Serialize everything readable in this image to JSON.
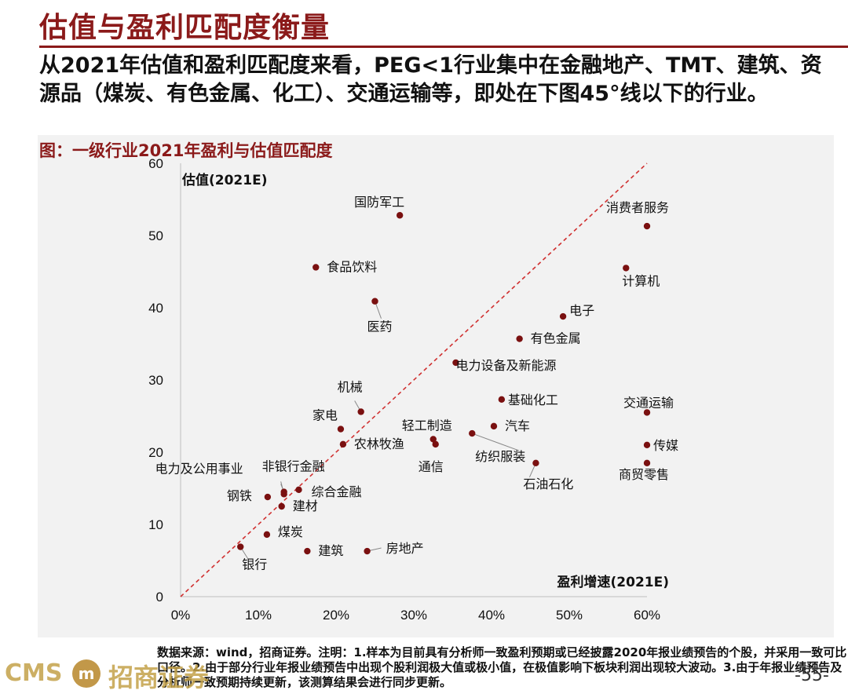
{
  "page": {
    "title": "估值与盈利匹配度衡量",
    "summary": "从2021年估值和盈利匹配度来看，PEG<1行业集中在金融地产、TMT、建筑、资源品（煤炭、有色金属、化工）、交通运输等，即处在下图45°线以下的行业。",
    "caption": "图：一级行业2021年盈利与估值匹配度",
    "footnote": "数据来源：wind，招商证券。注明：1.样本为目前具有分析师一致盈利预期或已经披露2020年报业绩预告的个股，并采用一致可比口径。2.由于部分行业年报业绩预告中出现个股利润极大值或极小值，在极值影响下板块利润出现较大波动。3.由于年报业绩预告及分析师一致预期持续更新，该测算结果会进行同步更新。",
    "logo_text": "CMS",
    "logo_mark": "m",
    "logo_cn": "招商证券",
    "page_number": "-55-"
  },
  "chart_data": {
    "type": "scatter",
    "title": "",
    "xlabel": "盈利增速(2021E)",
    "ylabel": "估值(2021E)",
    "xlim": [
      0,
      0.6
    ],
    "ylim": [
      0,
      60
    ],
    "x_ticks": [
      "0%",
      "10%",
      "20%",
      "30%",
      "40%",
      "50%",
      "60%"
    ],
    "y_ticks": [
      "0",
      "10",
      "20",
      "30",
      "40",
      "50",
      "60"
    ],
    "reference_line": "45° diagonal (dashed red)",
    "point_color": "#7a1010",
    "line_color": "#d03030",
    "points": [
      {
        "label": "国防军工",
        "x": 0.282,
        "y": 52.8
      },
      {
        "label": "消费者服务",
        "x": 0.6,
        "y": 51.3
      },
      {
        "label": "食品饮料",
        "x": 0.174,
        "y": 45.6
      },
      {
        "label": "计算机",
        "x": 0.573,
        "y": 45.5
      },
      {
        "label": "医药",
        "x": 0.25,
        "y": 40.9
      },
      {
        "label": "电子",
        "x": 0.492,
        "y": 38.8
      },
      {
        "label": "有色金属",
        "x": 0.436,
        "y": 35.7
      },
      {
        "label": "电力设备及新能源",
        "x": 0.354,
        "y": 32.4
      },
      {
        "label": "基础化工",
        "x": 0.413,
        "y": 27.3
      },
      {
        "label": "交通运输",
        "x": 0.6,
        "y": 25.5
      },
      {
        "label": "机械",
        "x": 0.232,
        "y": 25.6
      },
      {
        "label": "家电",
        "x": 0.206,
        "y": 23.2
      },
      {
        "label": "汽车",
        "x": 0.403,
        "y": 23.6
      },
      {
        "label": "轻工制造",
        "x": 0.325,
        "y": 21.8
      },
      {
        "label": "纺织服装",
        "x": 0.375,
        "y": 22.6
      },
      {
        "label": "农林牧渔",
        "x": 0.209,
        "y": 21.1
      },
      {
        "label": "通信",
        "x": 0.328,
        "y": 21.1
      },
      {
        "label": "传媒",
        "x": 0.6,
        "y": 21.0
      },
      {
        "label": "石油石化",
        "x": 0.457,
        "y": 18.5
      },
      {
        "label": "商贸零售",
        "x": 0.6,
        "y": 18.5
      },
      {
        "label": "非银行金融",
        "x": 0.133,
        "y": 14.2
      },
      {
        "label": "综合金融",
        "x": 0.152,
        "y": 14.8
      },
      {
        "label": "电力及公用事业",
        "x": 0.133,
        "y": 14.5
      },
      {
        "label": "钢铁",
        "x": 0.112,
        "y": 13.8
      },
      {
        "label": "建材",
        "x": 0.13,
        "y": 12.5
      },
      {
        "label": "煤炭",
        "x": 0.111,
        "y": 8.6
      },
      {
        "label": "建筑",
        "x": 0.163,
        "y": 6.3
      },
      {
        "label": "房地产",
        "x": 0.24,
        "y": 6.3
      },
      {
        "label": "银行",
        "x": 0.077,
        "y": 6.9
      }
    ]
  }
}
